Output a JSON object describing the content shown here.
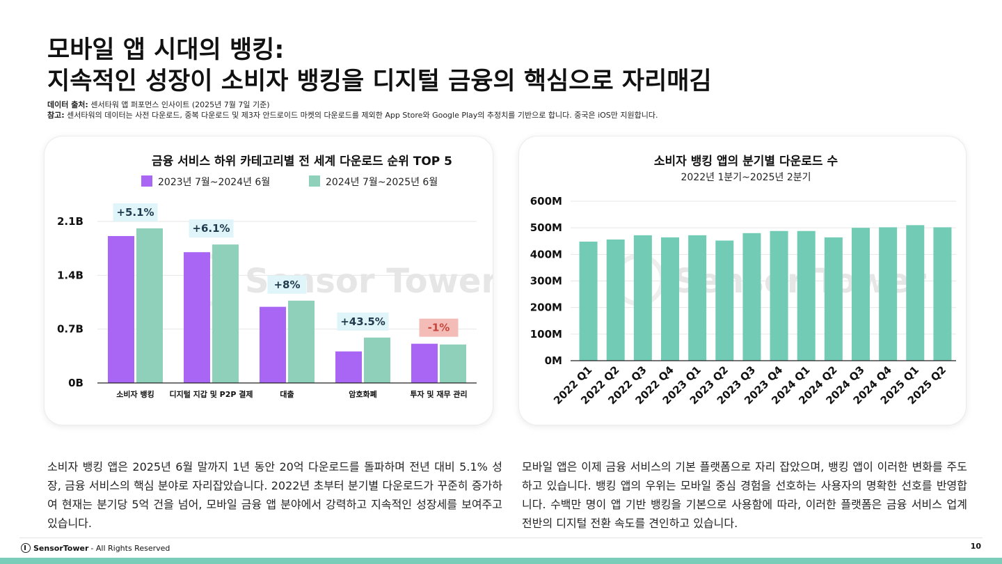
{
  "title": {
    "line1": "모바일 앱 시대의 뱅킹:",
    "line2": "지속적인 성장이 소비자 뱅킹을 디지털 금융의 핵심으로 자리매김"
  },
  "source": {
    "label": "데이터 출처:",
    "text": "센서타워 앱 퍼포먼스 인사이트 (2025년 7월 7일 기준)"
  },
  "note": {
    "label": "참고:",
    "text": "센서타워의 데이터는 사전 다운로드, 중복 다운로드 및 제3자 안드로이드 마켓의 다운로드를 제외한 App Store와 Google Play의 추정치를 기반으로 합니다. 중국은 iOS만 지원합니다."
  },
  "watermark": "Sensor Tower",
  "colors": {
    "purple": "#a965f3",
    "teal": "#8fd0bb",
    "teal_bar": "#72ccb5",
    "pos_bg": "#dff5f9",
    "pos_text": "#1f3a4d",
    "neg_bg": "#f4bcb7",
    "neg_text": "#c4473d"
  },
  "chart_data": [
    {
      "type": "bar",
      "title": "금융 서비스 하위 카테고리별 전 세계 다운로드 순위 TOP 5",
      "categories": [
        "소비자 뱅킹",
        "디지털 지갑 및 P2P 결제",
        "대출",
        "암호화폐",
        "투자 및 재무 관리"
      ],
      "series": [
        {
          "name": "2023년 7월~2024년 6월",
          "values": [
            1.91,
            1.7,
            0.99,
            0.41,
            0.51
          ]
        },
        {
          "name": "2024년 7월~2025년 6월",
          "values": [
            2.01,
            1.8,
            1.07,
            0.59,
            0.5
          ]
        }
      ],
      "annotations": [
        "+5.1%",
        "+6.1%",
        "+8%",
        "+43.5%",
        "-1%"
      ],
      "yticks": [
        0,
        0.7,
        1.4,
        2.1
      ],
      "ytick_labels": [
        "0B",
        "0.7B",
        "1.4B",
        "2.1B"
      ],
      "ylim": [
        0,
        2.1
      ],
      "ylabel": "",
      "xlabel": "",
      "legend": "top"
    },
    {
      "type": "bar",
      "title": "소비자 뱅킹 앱의 분기별 다운로드 수",
      "subtitle": "2022년 1분기~2025년 2분기",
      "categories": [
        "2022 Q1",
        "2022 Q2",
        "2022 Q3",
        "2022 Q4",
        "2023 Q1",
        "2023 Q2",
        "2023 Q3",
        "2023 Q4",
        "2024 Q1",
        "2024 Q2",
        "2024 Q3",
        "2024 Q4",
        "2025 Q1",
        "2025 Q2"
      ],
      "values": [
        448,
        456,
        472,
        464,
        472,
        452,
        480,
        488,
        488,
        464,
        500,
        502,
        510,
        502
      ],
      "yticks": [
        0,
        100,
        200,
        300,
        400,
        500,
        600
      ],
      "ytick_labels": [
        "0M",
        "100M",
        "200M",
        "300M",
        "400M",
        "500M",
        "600M"
      ],
      "ylim": [
        0,
        600
      ],
      "ylabel": "",
      "xlabel": ""
    }
  ],
  "paragraphs": {
    "left": "소비자 뱅킹 앱은 2025년 6월 말까지 1년 동안 20억 다운로드를 돌파하며 전년 대비 5.1% 성장, 금융 서비스의 핵심 분야로 자리잡았습니다. 2022년 초부터 분기별 다운로드가 꾸준히 증가하여 현재는 분기당 5억 건을 넘어, 모바일 금융 앱 분야에서 강력하고 지속적인 성장세를 보여주고 있습니다.",
    "right": "모바일 앱은 이제 금융 서비스의 기본 플랫폼으로 자리 잡았으며, 뱅킹 앱이 이러한 변화를 주도하고 있습니다. 뱅킹 앱의 우위는 모바일 중심 경험을 선호하는 사용자의 명확한 선호를 반영합니다. 수백만 명이 앱 기반 뱅킹을 기본으로 사용함에 따라, 이러한 플랫폼은 금융 서비스 업계 전반의 디지털 전환 속도를 견인하고 있습니다."
  },
  "footer": {
    "brand": "SensorTower",
    "rights": "- All Rights Reserved",
    "page": "10"
  }
}
